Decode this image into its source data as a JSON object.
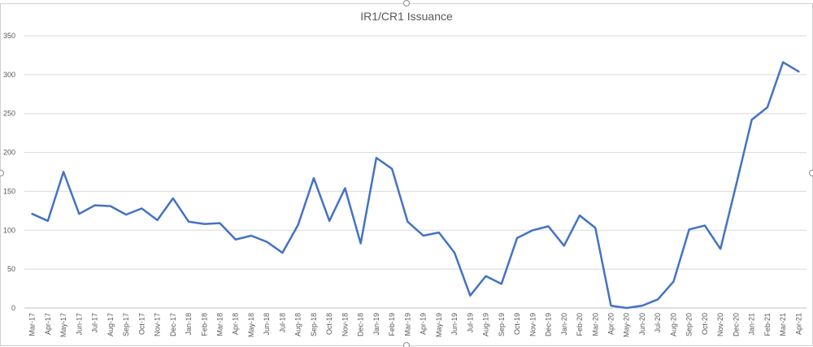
{
  "chart_data": {
    "type": "line",
    "title": "IR1/CR1 Issuance",
    "xlabel": "",
    "ylabel": "",
    "ylim": [
      0,
      350
    ],
    "yticks": [
      0,
      50,
      100,
      150,
      200,
      250,
      300,
      350
    ],
    "grid": "horizontal",
    "legend": "none",
    "categories": [
      "Mar-17",
      "Apr-17",
      "May-17",
      "Jun-17",
      "Jul-17",
      "Aug-17",
      "Sep-17",
      "Oct-17",
      "Nov-17",
      "Dec-17",
      "Jan-18",
      "Feb-18",
      "Mar-18",
      "Apr-18",
      "May-18",
      "Jun-18",
      "Jul-18",
      "Aug-18",
      "Sep-18",
      "Oct-18",
      "Nov-18",
      "Dec-18",
      "Jan-19",
      "Feb-19",
      "Mar-19",
      "Apr-19",
      "May-19",
      "Jun-19",
      "Jul-19",
      "Aug-19",
      "Sep-19",
      "Oct-19",
      "Nov-19",
      "Dec-19",
      "Jan-20",
      "Feb-20",
      "Mar-20",
      "Apr-20",
      "May-20",
      "Jun-20",
      "Jul-20",
      "Aug-20",
      "Sep-20",
      "Oct-20",
      "Nov-20",
      "Dec-20",
      "Jan-21",
      "Feb-21",
      "Mar-21",
      "Apr-21"
    ],
    "series": [
      {
        "color": "#4472c4",
        "values": [
          121,
          112,
          175,
          121,
          132,
          131,
          120,
          128,
          113,
          141,
          111,
          108,
          109,
          88,
          93,
          85,
          71,
          107,
          167,
          112,
          154,
          83,
          193,
          179,
          111,
          93,
          97,
          71,
          16,
          41,
          31,
          90,
          100,
          105,
          80,
          119,
          103,
          3,
          0,
          3,
          11,
          34,
          101,
          106,
          76,
          158,
          242,
          258,
          316,
          304
        ]
      }
    ]
  }
}
